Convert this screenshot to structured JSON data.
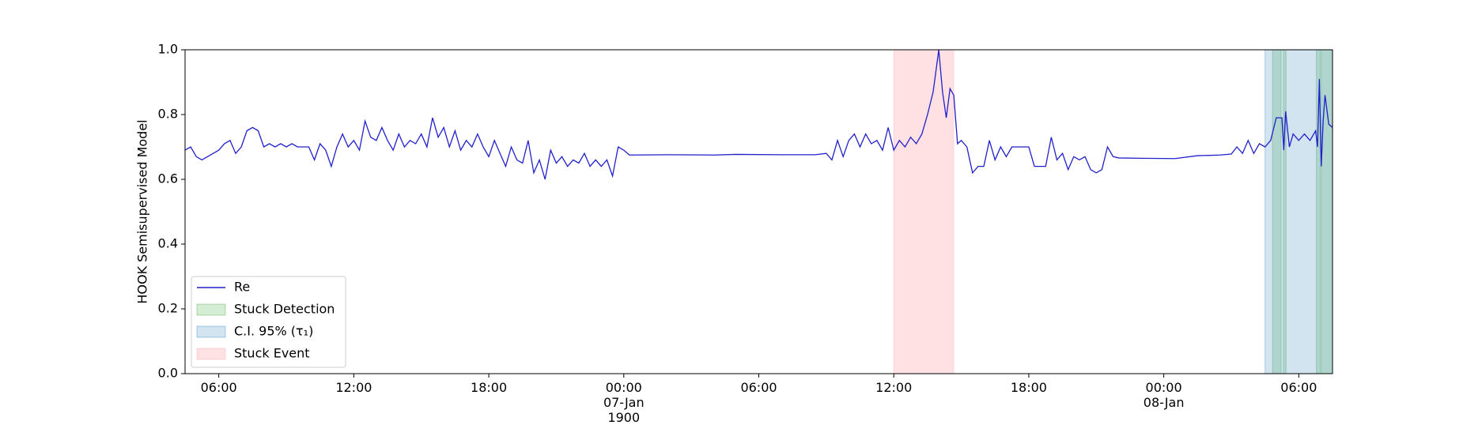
{
  "chart_data": {
    "type": "line",
    "ylabel": "HOOK Semisupervised Model",
    "xlim": [
      "1900-01-06 04:30",
      "1900-01-08 07:30"
    ],
    "xticks": [
      {
        "value": "1900-01-06 06:00",
        "label": "06:00"
      },
      {
        "value": "1900-01-06 12:00",
        "label": "12:00"
      },
      {
        "value": "1900-01-06 18:00",
        "label": "18:00"
      },
      {
        "value": "1900-01-07 00:00",
        "label": "00:00\n07-Jan\n1900"
      },
      {
        "value": "1900-01-07 06:00",
        "label": "06:00"
      },
      {
        "value": "1900-01-07 12:00",
        "label": "12:00"
      },
      {
        "value": "1900-01-07 18:00",
        "label": "18:00"
      },
      {
        "value": "1900-01-08 00:00",
        "label": "00:00\n08-Jan"
      },
      {
        "value": "1900-01-08 06:00",
        "label": "06:00"
      }
    ],
    "ylim": [
      0,
      1
    ],
    "yticks": [
      {
        "value": 0,
        "label": "0.0"
      },
      {
        "value": 0.2,
        "label": "0.2"
      },
      {
        "value": 0.4,
        "label": "0.4"
      },
      {
        "value": 0.6,
        "label": "0.6"
      },
      {
        "value": 0.8,
        "label": "0.8"
      },
      {
        "value": 1,
        "label": "1.0"
      }
    ],
    "legend": "lower left",
    "x": [
      "1900-01-06 04:30",
      "1900-01-06 04:45",
      "1900-01-06 05:00",
      "1900-01-06 05:15",
      "1900-01-06 05:30",
      "1900-01-06 05:45",
      "1900-01-06 06:00",
      "1900-01-06 06:15",
      "1900-01-06 06:30",
      "1900-01-06 06:45",
      "1900-01-06 07:00",
      "1900-01-06 07:15",
      "1900-01-06 07:30",
      "1900-01-06 07:45",
      "1900-01-06 08:00",
      "1900-01-06 08:15",
      "1900-01-06 08:30",
      "1900-01-06 08:45",
      "1900-01-06 09:00",
      "1900-01-06 09:15",
      "1900-01-06 09:30",
      "1900-01-06 10:00",
      "1900-01-06 10:15",
      "1900-01-06 10:30",
      "1900-01-06 10:45",
      "1900-01-06 11:00",
      "1900-01-06 11:15",
      "1900-01-06 11:30",
      "1900-01-06 11:45",
      "1900-01-06 12:00",
      "1900-01-06 12:15",
      "1900-01-06 12:30",
      "1900-01-06 12:45",
      "1900-01-06 13:00",
      "1900-01-06 13:15",
      "1900-01-06 13:30",
      "1900-01-06 13:45",
      "1900-01-06 14:00",
      "1900-01-06 14:15",
      "1900-01-06 14:30",
      "1900-01-06 14:45",
      "1900-01-06 15:00",
      "1900-01-06 15:15",
      "1900-01-06 15:30",
      "1900-01-06 15:45",
      "1900-01-06 16:00",
      "1900-01-06 16:15",
      "1900-01-06 16:30",
      "1900-01-06 16:45",
      "1900-01-06 17:00",
      "1900-01-06 17:15",
      "1900-01-06 17:30",
      "1900-01-06 17:45",
      "1900-01-06 18:00",
      "1900-01-06 18:15",
      "1900-01-06 18:30",
      "1900-01-06 18:45",
      "1900-01-06 19:00",
      "1900-01-06 19:15",
      "1900-01-06 19:30",
      "1900-01-06 19:45",
      "1900-01-06 20:00",
      "1900-01-06 20:15",
      "1900-01-06 20:30",
      "1900-01-06 20:45",
      "1900-01-06 21:00",
      "1900-01-06 21:15",
      "1900-01-06 21:30",
      "1900-01-06 21:45",
      "1900-01-06 22:00",
      "1900-01-06 22:15",
      "1900-01-06 22:30",
      "1900-01-06 22:45",
      "1900-01-06 23:00",
      "1900-01-06 23:15",
      "1900-01-06 23:30",
      "1900-01-06 23:45",
      "1900-01-07 00:00",
      "1900-01-07 00:15",
      "1900-01-07 02:00",
      "1900-01-07 04:00",
      "1900-01-07 05:00",
      "1900-01-07 07:00",
      "1900-01-07 08:30",
      "1900-01-07 09:00",
      "1900-01-07 09:15",
      "1900-01-07 09:30",
      "1900-01-07 09:45",
      "1900-01-07 10:00",
      "1900-01-07 10:15",
      "1900-01-07 10:30",
      "1900-01-07 10:45",
      "1900-01-07 11:00",
      "1900-01-07 11:15",
      "1900-01-07 11:30",
      "1900-01-07 11:45",
      "1900-01-07 12:00",
      "1900-01-07 12:15",
      "1900-01-07 12:30",
      "1900-01-07 12:45",
      "1900-01-07 13:00",
      "1900-01-07 13:15",
      "1900-01-07 13:30",
      "1900-01-07 13:45",
      "1900-01-07 14:00",
      "1900-01-07 14:10",
      "1900-01-07 14:20",
      "1900-01-07 14:30",
      "1900-01-07 14:40",
      "1900-01-07 14:50",
      "1900-01-07 15:00",
      "1900-01-07 15:15",
      "1900-01-07 15:30",
      "1900-01-07 15:45",
      "1900-01-07 16:00",
      "1900-01-07 16:15",
      "1900-01-07 16:30",
      "1900-01-07 16:45",
      "1900-01-07 17:00",
      "1900-01-07 17:15",
      "1900-01-07 18:00",
      "1900-01-07 18:15",
      "1900-01-07 18:45",
      "1900-01-07 19:00",
      "1900-01-07 19:15",
      "1900-01-07 19:30",
      "1900-01-07 19:45",
      "1900-01-07 20:00",
      "1900-01-07 20:15",
      "1900-01-07 20:30",
      "1900-01-07 20:45",
      "1900-01-07 21:00",
      "1900-01-07 21:15",
      "1900-01-07 21:30",
      "1900-01-07 21:45",
      "1900-01-07 22:00",
      "1900-01-07 23:00",
      "1900-01-08 00:30",
      "1900-01-08 01:30",
      "1900-01-08 02:30",
      "1900-01-08 03:00",
      "1900-01-08 03:15",
      "1900-01-08 03:30",
      "1900-01-08 03:45",
      "1900-01-08 04:00",
      "1900-01-08 04:15",
      "1900-01-08 04:30",
      "1900-01-08 04:45",
      "1900-01-08 05:00",
      "1900-01-08 05:15",
      "1900-01-08 05:20",
      "1900-01-08 05:25",
      "1900-01-08 05:35",
      "1900-01-08 05:45",
      "1900-01-08 06:00",
      "1900-01-08 06:15",
      "1900-01-08 06:30",
      "1900-01-08 06:45",
      "1900-01-08 06:50",
      "1900-01-08 06:55",
      "1900-01-08 07:00",
      "1900-01-08 07:05",
      "1900-01-08 07:10",
      "1900-01-08 07:20",
      "1900-01-08 07:30"
    ],
    "series": [
      {
        "name": "Re",
        "color": "#2020cc",
        "values": [
          0.69,
          0.7,
          0.67,
          0.66,
          0.67,
          0.68,
          0.69,
          0.71,
          0.72,
          0.68,
          0.7,
          0.75,
          0.76,
          0.75,
          0.7,
          0.71,
          0.7,
          0.71,
          0.7,
          0.71,
          0.7,
          0.7,
          0.66,
          0.71,
          0.69,
          0.64,
          0.7,
          0.74,
          0.7,
          0.72,
          0.69,
          0.78,
          0.73,
          0.72,
          0.76,
          0.72,
          0.69,
          0.74,
          0.7,
          0.72,
          0.71,
          0.74,
          0.7,
          0.79,
          0.73,
          0.76,
          0.7,
          0.75,
          0.69,
          0.72,
          0.7,
          0.74,
          0.7,
          0.67,
          0.72,
          0.68,
          0.64,
          0.7,
          0.66,
          0.65,
          0.72,
          0.62,
          0.66,
          0.6,
          0.69,
          0.65,
          0.67,
          0.64,
          0.66,
          0.65,
          0.68,
          0.64,
          0.66,
          0.64,
          0.66,
          0.61,
          0.7,
          0.69,
          0.675,
          0.676,
          0.675,
          0.677,
          0.676,
          0.676,
          0.68,
          0.66,
          0.72,
          0.67,
          0.72,
          0.74,
          0.7,
          0.74,
          0.71,
          0.72,
          0.69,
          0.76,
          0.69,
          0.72,
          0.7,
          0.73,
          0.71,
          0.74,
          0.8,
          0.87,
          1.0,
          0.87,
          0.79,
          0.88,
          0.86,
          0.71,
          0.72,
          0.7,
          0.62,
          0.64,
          0.64,
          0.72,
          0.66,
          0.7,
          0.67,
          0.7,
          0.7,
          0.64,
          0.64,
          0.73,
          0.66,
          0.68,
          0.63,
          0.67,
          0.66,
          0.67,
          0.63,
          0.62,
          0.63,
          0.7,
          0.67,
          0.666,
          0.665,
          0.664,
          0.673,
          0.675,
          0.678,
          0.7,
          0.68,
          0.72,
          0.68,
          0.71,
          0.7,
          0.72,
          0.79,
          0.79,
          0.69,
          0.81,
          0.7,
          0.74,
          0.72,
          0.74,
          0.72,
          0.75,
          0.7,
          0.91,
          0.64,
          0.78,
          0.86,
          0.77,
          0.76
        ]
      }
    ],
    "spans": [
      {
        "name": "Stuck Detection",
        "color": "#2ca02c",
        "ranges": [
          [
            "1900-01-08 04:50",
            "1900-01-08 05:13"
          ],
          [
            "1900-01-08 05:19",
            "1900-01-08 05:26"
          ],
          [
            "1900-01-08 06:47",
            "1900-01-08 06:57"
          ],
          [
            "1900-01-08 07:00",
            "1900-01-08 07:30"
          ]
        ]
      },
      {
        "name": "C.I. 95% (τ₁)",
        "color": "#1f77b4",
        "ranges": [
          [
            "1900-01-08 04:30",
            "1900-01-08 07:30"
          ]
        ]
      },
      {
        "name": "Stuck Event",
        "color": "#ff9aa6",
        "ranges": [
          [
            "1900-01-07 12:00",
            "1900-01-07 14:40"
          ]
        ]
      }
    ]
  }
}
